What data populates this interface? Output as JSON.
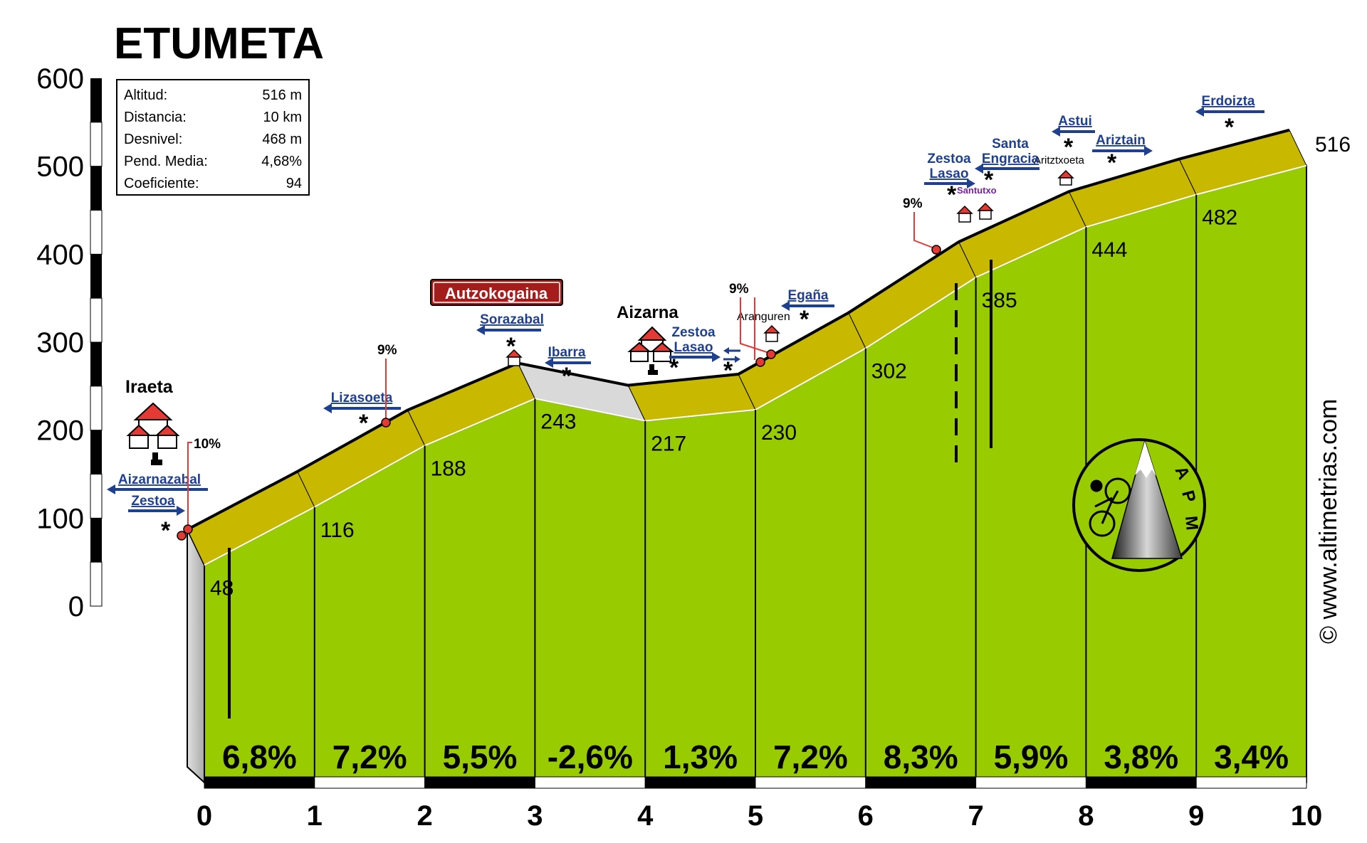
{
  "title": "ETUMETA",
  "info_box": {
    "rows": [
      {
        "label": "Altitud:",
        "value": "516 m"
      },
      {
        "label": "Distancia:",
        "value": "10 km"
      },
      {
        "label": "Desnivel:",
        "value": "468 m"
      },
      {
        "label": "Pend. Media:",
        "value": "4,68%"
      },
      {
        "label": "Coeficiente:",
        "value": "94"
      }
    ]
  },
  "watermark": "© www.altimetrias.com",
  "logo_text": [
    "A",
    "P",
    "M"
  ],
  "chart_data": {
    "type": "area",
    "title": "ETUMETA",
    "xlabel": "",
    "ylabel": "",
    "xlim": [
      0,
      10
    ],
    "ylim": [
      0,
      600
    ],
    "x_ticks": [
      "0",
      "1",
      "2",
      "3",
      "4",
      "5",
      "6",
      "7",
      "8",
      "9",
      "10"
    ],
    "y_ticks": [
      "0",
      "100",
      "200",
      "300",
      "400",
      "500",
      "600"
    ],
    "km_altitudes": [
      {
        "km": 0,
        "alt": 48,
        "label": "48"
      },
      {
        "km": 1,
        "alt": 116,
        "label": "116"
      },
      {
        "km": 2,
        "alt": 188,
        "label": "188"
      },
      {
        "km": 3,
        "alt": 243,
        "label": "243"
      },
      {
        "km": 4,
        "alt": 217,
        "label": "217"
      },
      {
        "km": 5,
        "alt": 230,
        "label": "230"
      },
      {
        "km": 6,
        "alt": 302,
        "label": "302"
      },
      {
        "km": 7,
        "alt": 385,
        "label": "385"
      },
      {
        "km": 8,
        "alt": 444,
        "label": "444"
      },
      {
        "km": 9,
        "alt": 482,
        "label": "482"
      },
      {
        "km": 10,
        "alt": 516,
        "label": "516"
      }
    ],
    "segment_gradients": [
      "6,8%",
      "7,2%",
      "5,5%",
      "-2,6%",
      "1,3%",
      "7,2%",
      "8,3%",
      "5,9%",
      "3,8%",
      "3,4%"
    ],
    "places": [
      {
        "name": "Iraeta",
        "km": 0,
        "bold": true
      },
      {
        "name": "Aizarna",
        "km": 4.1,
        "bold": true
      },
      {
        "name": "Aranguren",
        "km": 5.16,
        "bold": false
      },
      {
        "name": "Aritztxoeta",
        "km": 7.95,
        "bold": false
      },
      {
        "name": "Santutxo",
        "km": 7.15,
        "bold": false
      }
    ],
    "summit_label": "Autzokogaina",
    "direction_signs": [
      {
        "text": "Aizarnazabal",
        "km": -0.6,
        "dir": "left"
      },
      {
        "text": "Zestoa",
        "km": -0.45,
        "dir": "right"
      },
      {
        "text": "Lizasoeta",
        "km": 1.45,
        "dir": "left"
      },
      {
        "text": "Sorazabal",
        "km": 2.85,
        "dir": "left"
      },
      {
        "text": "Ibarra",
        "km": 3.35,
        "dir": "left"
      },
      {
        "text": "Zestoa",
        "km": 4.65,
        "dir": "right"
      },
      {
        "text": "Lasao",
        "km": 4.65,
        "dir": "right"
      },
      {
        "text": "Egaña",
        "km": 5.5,
        "dir": "left"
      },
      {
        "text": "Zestoa",
        "km": 6.75,
        "dir": "right"
      },
      {
        "text": "Lasao",
        "km": 6.75,
        "dir": "right"
      },
      {
        "text": "Santa",
        "km": 7.2,
        "dir": "none"
      },
      {
        "text": "Engracia",
        "km": 7.2,
        "dir": "left"
      },
      {
        "text": "Astui",
        "km": 7.9,
        "dir": "left"
      },
      {
        "text": "Ariztain",
        "km": 8.45,
        "dir": "right"
      },
      {
        "text": "Erdoizta",
        "km": 9.4,
        "dir": "left"
      }
    ],
    "ramp_labels": [
      {
        "text": "10%",
        "km": -0.1
      },
      {
        "text": "9%",
        "km": 1.65
      },
      {
        "text": "9%",
        "km": 5.05
      },
      {
        "text": "9%",
        "km": 6.65
      }
    ],
    "grid": false,
    "legend": "none"
  }
}
